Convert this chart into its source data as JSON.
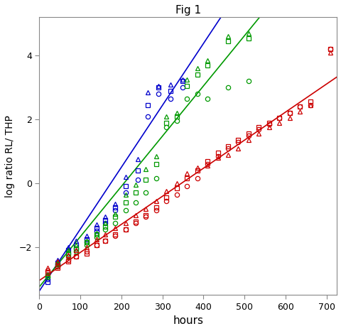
{
  "title": "Fig 1",
  "xlabel": "hours",
  "ylabel": "log ratio RL/ THP",
  "xlim": [
    0,
    725
  ],
  "ylim": [
    -3.5,
    5.2
  ],
  "xticks": [
    0,
    100,
    200,
    300,
    400,
    500,
    600,
    700
  ],
  "yticks": [
    -2,
    0,
    2,
    4
  ],
  "colors": {
    "blue": "#0000CC",
    "green": "#009900",
    "red": "#CC0000"
  },
  "blue": {
    "line_x": [
      0,
      340
    ],
    "line_slope": 0.0194,
    "line_intercept": -3.38,
    "circles": [
      [
        20,
        -3.0
      ],
      [
        45,
        -2.55
      ],
      [
        70,
        -2.2
      ],
      [
        90,
        -2.05
      ],
      [
        115,
        -1.85
      ],
      [
        140,
        -1.5
      ],
      [
        160,
        -1.25
      ],
      [
        185,
        -0.85
      ],
      [
        210,
        -0.3
      ],
      [
        240,
        0.1
      ],
      [
        265,
        2.1
      ],
      [
        290,
        2.8
      ],
      [
        320,
        2.65
      ],
      [
        350,
        3.0
      ]
    ],
    "triangles": [
      [
        20,
        -2.85
      ],
      [
        45,
        -2.4
      ],
      [
        70,
        -2.0
      ],
      [
        90,
        -1.8
      ],
      [
        115,
        -1.65
      ],
      [
        140,
        -1.3
      ],
      [
        160,
        -1.05
      ],
      [
        185,
        -0.65
      ],
      [
        210,
        0.2
      ],
      [
        240,
        0.75
      ],
      [
        265,
        2.85
      ],
      [
        290,
        3.05
      ],
      [
        320,
        3.1
      ],
      [
        350,
        3.25
      ]
    ],
    "squares": [
      [
        20,
        -3.1
      ],
      [
        45,
        -2.5
      ],
      [
        70,
        -2.1
      ],
      [
        90,
        -1.95
      ],
      [
        115,
        -1.75
      ],
      [
        140,
        -1.4
      ],
      [
        160,
        -1.15
      ],
      [
        185,
        -0.75
      ],
      [
        210,
        -0.1
      ],
      [
        240,
        0.4
      ],
      [
        265,
        2.45
      ],
      [
        290,
        3.0
      ],
      [
        320,
        2.9
      ],
      [
        350,
        3.2
      ]
    ]
  },
  "green": {
    "line_slope": 0.01575,
    "line_intercept": -3.25,
    "circles": [
      [
        20,
        -2.95
      ],
      [
        45,
        -2.6
      ],
      [
        70,
        -2.3
      ],
      [
        90,
        -2.15
      ],
      [
        115,
        -1.95
      ],
      [
        140,
        -1.7
      ],
      [
        160,
        -1.45
      ],
      [
        185,
        -1.25
      ],
      [
        210,
        -0.85
      ],
      [
        235,
        -0.6
      ],
      [
        260,
        -0.3
      ],
      [
        285,
        0.15
      ],
      [
        310,
        1.75
      ],
      [
        335,
        1.95
      ],
      [
        360,
        2.65
      ],
      [
        385,
        2.8
      ],
      [
        410,
        2.65
      ],
      [
        460,
        3.0
      ],
      [
        510,
        3.2
      ]
    ],
    "triangles": [
      [
        20,
        -2.85
      ],
      [
        45,
        -2.5
      ],
      [
        70,
        -2.1
      ],
      [
        90,
        -1.95
      ],
      [
        115,
        -1.8
      ],
      [
        140,
        -1.55
      ],
      [
        160,
        -1.25
      ],
      [
        185,
        -0.95
      ],
      [
        210,
        -0.35
      ],
      [
        235,
        -0.05
      ],
      [
        260,
        0.45
      ],
      [
        285,
        0.85
      ],
      [
        310,
        2.1
      ],
      [
        335,
        2.2
      ],
      [
        360,
        3.25
      ],
      [
        385,
        3.6
      ],
      [
        410,
        3.85
      ],
      [
        460,
        4.6
      ],
      [
        510,
        4.7
      ]
    ],
    "squares": [
      [
        20,
        -2.9
      ],
      [
        45,
        -2.55
      ],
      [
        70,
        -2.2
      ],
      [
        90,
        -2.05
      ],
      [
        115,
        -1.85
      ],
      [
        140,
        -1.6
      ],
      [
        160,
        -1.35
      ],
      [
        185,
        -1.05
      ],
      [
        210,
        -0.6
      ],
      [
        235,
        -0.3
      ],
      [
        260,
        0.1
      ],
      [
        285,
        0.6
      ],
      [
        310,
        1.9
      ],
      [
        335,
        2.1
      ],
      [
        360,
        3.05
      ],
      [
        385,
        3.4
      ],
      [
        410,
        3.7
      ],
      [
        460,
        4.45
      ],
      [
        510,
        4.55
      ]
    ]
  },
  "red": {
    "line_slope": 0.0088,
    "line_intercept": -3.05,
    "circles": [
      [
        20,
        -2.75
      ],
      [
        45,
        -2.6
      ],
      [
        70,
        -2.4
      ],
      [
        90,
        -2.3
      ],
      [
        115,
        -2.15
      ],
      [
        140,
        -1.95
      ],
      [
        160,
        -1.8
      ],
      [
        185,
        -1.65
      ],
      [
        210,
        -1.45
      ],
      [
        235,
        -1.25
      ],
      [
        260,
        -1.05
      ],
      [
        285,
        -0.85
      ],
      [
        310,
        -0.55
      ],
      [
        335,
        -0.35
      ],
      [
        360,
        -0.1
      ],
      [
        385,
        0.15
      ],
      [
        410,
        0.6
      ],
      [
        435,
        0.85
      ],
      [
        460,
        1.1
      ],
      [
        485,
        1.3
      ],
      [
        510,
        1.5
      ],
      [
        535,
        1.7
      ],
      [
        560,
        1.85
      ],
      [
        585,
        2.05
      ],
      [
        610,
        2.2
      ],
      [
        635,
        2.4
      ],
      [
        660,
        2.45
      ],
      [
        710,
        4.2
      ]
    ],
    "triangles": [
      [
        20,
        -2.65
      ],
      [
        45,
        -2.45
      ],
      [
        70,
        -2.25
      ],
      [
        90,
        -2.1
      ],
      [
        115,
        -2.0
      ],
      [
        140,
        -1.75
      ],
      [
        160,
        -1.6
      ],
      [
        185,
        -1.4
      ],
      [
        210,
        -1.25
      ],
      [
        235,
        -1.0
      ],
      [
        260,
        -0.8
      ],
      [
        285,
        -0.55
      ],
      [
        310,
        -0.25
      ],
      [
        335,
        0.0
      ],
      [
        360,
        0.3
      ],
      [
        385,
        0.5
      ],
      [
        410,
        0.55
      ],
      [
        435,
        0.8
      ],
      [
        460,
        0.9
      ],
      [
        485,
        1.1
      ],
      [
        510,
        1.35
      ],
      [
        535,
        1.55
      ],
      [
        560,
        1.75
      ],
      [
        585,
        1.9
      ],
      [
        610,
        2.05
      ],
      [
        635,
        2.25
      ],
      [
        660,
        2.45
      ],
      [
        710,
        4.1
      ]
    ],
    "squares": [
      [
        20,
        -2.8
      ],
      [
        45,
        -2.65
      ],
      [
        70,
        -2.45
      ],
      [
        90,
        -2.3
      ],
      [
        115,
        -2.2
      ],
      [
        140,
        -1.95
      ],
      [
        160,
        -1.8
      ],
      [
        185,
        -1.6
      ],
      [
        210,
        -1.45
      ],
      [
        235,
        -1.2
      ],
      [
        260,
        -1.0
      ],
      [
        285,
        -0.75
      ],
      [
        310,
        -0.45
      ],
      [
        335,
        -0.15
      ],
      [
        360,
        0.15
      ],
      [
        385,
        0.4
      ],
      [
        410,
        0.7
      ],
      [
        435,
        0.95
      ],
      [
        460,
        1.15
      ],
      [
        485,
        1.35
      ],
      [
        510,
        1.55
      ],
      [
        535,
        1.75
      ],
      [
        560,
        1.9
      ],
      [
        585,
        2.05
      ],
      [
        610,
        2.2
      ],
      [
        635,
        2.4
      ],
      [
        660,
        2.55
      ],
      [
        710,
        4.2
      ]
    ]
  },
  "background": "#ffffff",
  "marker_size": 4.5,
  "line_width": 1.2
}
